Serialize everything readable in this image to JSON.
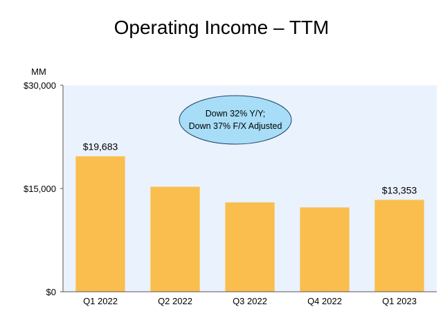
{
  "chart_data": {
    "type": "bar",
    "title": "Operating Income – TTM",
    "unit_label": "MM",
    "categories": [
      "Q1 2022",
      "Q2 2022",
      "Q3 2022",
      "Q4 2022",
      "Q1 2023"
    ],
    "values": [
      19683,
      15250,
      12975,
      12250,
      13353
    ],
    "data_labels": [
      "$19,683",
      "",
      "",
      "",
      "$13,353"
    ],
    "ylim": [
      0,
      30000
    ],
    "yticks": [
      0,
      15000,
      30000
    ],
    "ytick_labels": [
      "$0",
      "$15,000",
      "$30,000"
    ],
    "annotation": [
      "Down 32% Y/Y;",
      "Down 37% F/X Adjusted"
    ],
    "grid": false,
    "colors": {
      "bar": "#F9BE4D",
      "plot_background": "#EAF3FD",
      "annotation_fill": "#A8DDF7",
      "annotation_stroke": "#1F3F66",
      "axis": "#555555"
    }
  }
}
